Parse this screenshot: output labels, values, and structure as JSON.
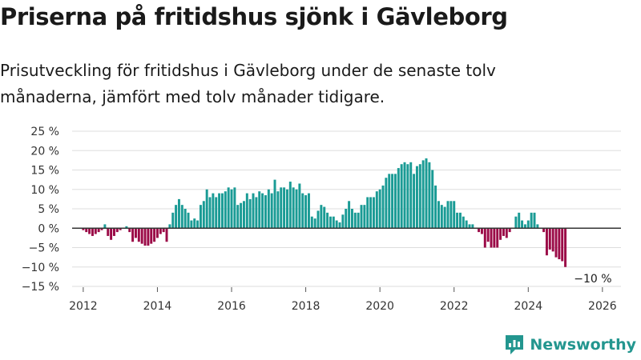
{
  "title": "Priserna på fritidshus sjönk i Gävleborg",
  "subtitle": "Prisutveckling för fritidshus i Gävleborg under de senaste tolv månaderna, jämfört med tolv månader tidigare.",
  "brand": {
    "name": "Newsworthy",
    "icon": "newsworthy-logo-icon"
  },
  "colors": {
    "positive": "#1a9b95",
    "negative": "#9b0a47",
    "grid": "#dddddd",
    "zero": "#333333",
    "brand": "#23968f"
  },
  "chart_data": {
    "type": "bar",
    "title": "Priserna på fritidshus sjönk i Gävleborg",
    "xlabel": "",
    "ylabel": "",
    "unit": "%",
    "ylim": [
      -15,
      25
    ],
    "y_ticks": [
      25,
      20,
      15,
      10,
      5,
      0,
      -5,
      -10,
      -15
    ],
    "y_tick_labels": [
      "25 %",
      "20 %",
      "15 %",
      "10 %",
      "5 %",
      "0 %",
      "−5 %",
      "−10 %",
      "−15 %"
    ],
    "x_range": [
      2011.7,
      2026.5
    ],
    "x_ticks": [
      2012,
      2014,
      2016,
      2018,
      2020,
      2022,
      2024,
      2026
    ],
    "x_tick_labels": [
      "2012",
      "2014",
      "2016",
      "2018",
      "2020",
      "2022",
      "2024",
      "2026"
    ],
    "grid": true,
    "start": "2012-01",
    "frequency": "monthly",
    "annotation": {
      "label": "−10 %",
      "at": "2026-01",
      "value": -10
    },
    "values": [
      -0.5,
      -1,
      -1.5,
      -2,
      -1.5,
      -1,
      -0.5,
      1,
      -2,
      -3,
      -2,
      -1,
      -0.5,
      0,
      0.5,
      -1,
      -3.5,
      -2.5,
      -3.5,
      -4,
      -4.5,
      -4.5,
      -4,
      -3.5,
      -2.5,
      -1.5,
      -1,
      -3.5,
      1,
      4,
      6,
      7.5,
      6,
      5,
      4,
      2,
      2.5,
      2,
      6,
      7,
      10,
      8,
      9,
      8,
      9,
      9,
      9.5,
      10.5,
      10,
      10.5,
      6,
      6.5,
      7,
      9,
      7.5,
      9,
      8,
      9.5,
      9,
      8.5,
      10,
      9,
      12.5,
      9.5,
      10.5,
      10.5,
      10,
      12,
      10.5,
      10,
      11.5,
      9,
      8.5,
      9,
      3,
      2.5,
      4.5,
      6,
      5.5,
      4,
      3,
      3,
      2,
      1.5,
      3.5,
      5,
      7,
      5,
      4,
      4,
      6,
      6,
      8,
      8,
      8,
      9.5,
      10,
      11,
      13,
      14,
      14,
      14,
      15.5,
      16.5,
      17,
      16.5,
      17,
      14,
      16,
      16.5,
      17.5,
      18,
      17,
      15,
      11,
      7,
      6,
      5.5,
      7,
      7,
      7,
      4,
      4,
      3,
      2,
      1,
      1,
      0,
      -1,
      -1.5,
      -5,
      -3.5,
      -5,
      -5,
      -5,
      -3,
      -2,
      -2.5,
      -1,
      0,
      3,
      4,
      2,
      1,
      2,
      4,
      4,
      1,
      0,
      -1,
      -7,
      -5.5,
      -6,
      -7.5,
      -8,
      -8.5,
      -10
    ]
  }
}
